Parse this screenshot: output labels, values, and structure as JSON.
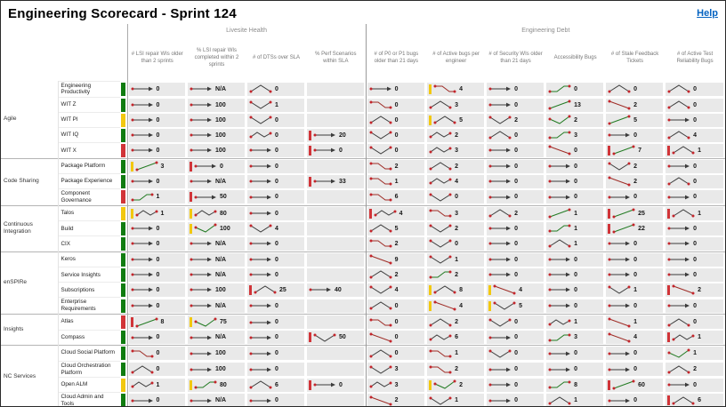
{
  "title": "Engineering Scorecard - Sprint 124",
  "help_label": "Help",
  "colors": {
    "green": "#107C10",
    "yellow": "#F2C80F",
    "red": "#D13438"
  },
  "column_groups": [
    {
      "label": "Livesite Health",
      "span": 4
    },
    {
      "label": "Engineering Debt",
      "span": 6
    }
  ],
  "columns": [
    "# LSI repair WIs older than 2 sprints",
    "% LSI repair WIs completed within 2 sprints",
    "# of DTSs over SLA",
    "% Perf Scenarios within SLA",
    "# of P0 or P1 bugs older than 21 days",
    "# of Active bugs per engineer",
    "# of Security WIs older than 21 days",
    "Accessibility Bugs",
    "# of Stale Feedback Tickets",
    "# of Active Test Reliability Bugs"
  ],
  "groups": [
    {
      "name": "Agile",
      "rows": [
        {
          "name": "Engineering Productivity",
          "status": "g",
          "cells": [
            [
              "0",
              "flat"
            ],
            [
              "N/A",
              "flat"
            ],
            [
              "0",
              "peak"
            ],
            [
              "",
              null
            ],
            [
              "0",
              "flat"
            ],
            [
              "4",
              "fall",
              "y"
            ],
            [
              "0",
              "flat"
            ],
            [
              "0",
              "rise"
            ],
            [
              "0",
              "peak"
            ],
            [
              "0",
              "peak"
            ]
          ]
        },
        {
          "name": "WIT Z",
          "status": "g",
          "cells": [
            [
              "0",
              "flat"
            ],
            [
              "100",
              "flat"
            ],
            [
              "1",
              "valley"
            ],
            [
              "",
              null
            ],
            [
              "0",
              "fall"
            ],
            [
              "3",
              "peak"
            ],
            [
              "0",
              "flat"
            ],
            [
              "13",
              "up"
            ],
            [
              "2",
              "down"
            ],
            [
              "0",
              "peak"
            ]
          ]
        },
        {
          "name": "WIT PI",
          "status": "y",
          "cells": [
            [
              "0",
              "flat"
            ],
            [
              "100",
              "flat"
            ],
            [
              "0",
              "valley"
            ],
            [
              "",
              null
            ],
            [
              "0",
              "peak"
            ],
            [
              "5",
              "peak",
              "y"
            ],
            [
              "2",
              "valley"
            ],
            [
              "2",
              "dip"
            ],
            [
              "5",
              "up"
            ],
            [
              "0",
              "flat"
            ]
          ]
        },
        {
          "name": "WIT IQ",
          "status": "g",
          "cells": [
            [
              "0",
              "flat"
            ],
            [
              "100",
              "flat"
            ],
            [
              "0",
              "wave"
            ],
            [
              "20",
              "flat",
              "r"
            ],
            [
              "0",
              "valley"
            ],
            [
              "2",
              "wave"
            ],
            [
              "0",
              "peak"
            ],
            [
              "3",
              "rise"
            ],
            [
              "0",
              "flat"
            ],
            [
              "4",
              "peak"
            ]
          ]
        },
        {
          "name": "WIT X",
          "status": "r",
          "cells": [
            [
              "0",
              "flat"
            ],
            [
              "100",
              "flat"
            ],
            [
              "0",
              "flat"
            ],
            [
              "0",
              "flat",
              "r"
            ],
            [
              "0",
              "valley"
            ],
            [
              "3",
              "wave"
            ],
            [
              "0",
              "flat"
            ],
            [
              "0",
              "down"
            ],
            [
              "7",
              "up",
              "r"
            ],
            [
              "1",
              "peak",
              "r"
            ]
          ]
        }
      ]
    },
    {
      "name": "Code Sharing",
      "rows": [
        {
          "name": "Package Platform",
          "status": "g",
          "cells": [
            [
              "3",
              "up",
              "y"
            ],
            [
              "0",
              "flat",
              "r"
            ],
            [
              "0",
              "flat"
            ],
            [
              "",
              null
            ],
            [
              "2",
              "fall"
            ],
            [
              "2",
              "peak"
            ],
            [
              "0",
              "flat"
            ],
            [
              "0",
              "flat"
            ],
            [
              "2",
              "valley"
            ],
            [
              "0",
              "flat"
            ]
          ]
        },
        {
          "name": "Package Experience",
          "status": "g",
          "cells": [
            [
              "0",
              "flat"
            ],
            [
              "N/A",
              "flat"
            ],
            [
              "0",
              "flat"
            ],
            [
              "33",
              "flat",
              "r"
            ],
            [
              "1",
              "fall"
            ],
            [
              "4",
              "wave"
            ],
            [
              "0",
              "flat"
            ],
            [
              "0",
              "flat"
            ],
            [
              "2",
              "down"
            ],
            [
              "0",
              "peak"
            ]
          ]
        },
        {
          "name": "Component Governance",
          "status": "r",
          "cells": [
            [
              "1",
              "rise"
            ],
            [
              "50",
              "flat",
              "r"
            ],
            [
              "0",
              "flat"
            ],
            [
              "",
              null
            ],
            [
              "6",
              "fall"
            ],
            [
              "0",
              "valley"
            ],
            [
              "0",
              "flat"
            ],
            [
              "0",
              "flat"
            ],
            [
              "0",
              "flat"
            ],
            [
              "0",
              "flat"
            ]
          ]
        }
      ]
    },
    {
      "name": "Continuous Integration",
      "rows": [
        {
          "name": "Talos",
          "status": "y",
          "cells": [
            [
              "1",
              "wave",
              "y"
            ],
            [
              "80",
              "wave",
              "y"
            ],
            [
              "0",
              "flat"
            ],
            [
              "",
              null
            ],
            [
              "4",
              "wave",
              "r"
            ],
            [
              "3",
              "fall"
            ],
            [
              "2",
              "peak"
            ],
            [
              "1",
              "up"
            ],
            [
              "25",
              "up",
              "r"
            ],
            [
              "1",
              "peak",
              "r"
            ]
          ]
        },
        {
          "name": "Build",
          "status": "g",
          "cells": [
            [
              "0",
              "flat"
            ],
            [
              "100",
              "dip",
              "y"
            ],
            [
              "4",
              "valley"
            ],
            [
              "",
              null
            ],
            [
              "5",
              "peak"
            ],
            [
              "2",
              "valley"
            ],
            [
              "0",
              "flat"
            ],
            [
              "1",
              "rise"
            ],
            [
              "22",
              "up",
              "r"
            ],
            [
              "0",
              "flat"
            ]
          ]
        },
        {
          "name": "CIX",
          "status": "g",
          "cells": [
            [
              "0",
              "flat"
            ],
            [
              "N/A",
              "flat"
            ],
            [
              "0",
              "flat"
            ],
            [
              "",
              null
            ],
            [
              "2",
              "fall"
            ],
            [
              "0",
              "valley"
            ],
            [
              "0",
              "flat"
            ],
            [
              "1",
              "peak"
            ],
            [
              "0",
              "flat"
            ],
            [
              "0",
              "flat"
            ]
          ]
        }
      ]
    },
    {
      "name": "enSPIRe",
      "rows": [
        {
          "name": "Keros",
          "status": "g",
          "cells": [
            [
              "0",
              "flat"
            ],
            [
              "N/A",
              "flat"
            ],
            [
              "0",
              "flat"
            ],
            [
              "",
              null
            ],
            [
              "9",
              "down"
            ],
            [
              "1",
              "valley"
            ],
            [
              "0",
              "flat"
            ],
            [
              "0",
              "flat"
            ],
            [
              "0",
              "flat"
            ],
            [
              "0",
              "flat"
            ]
          ]
        },
        {
          "name": "Service Insights",
          "status": "g",
          "cells": [
            [
              "0",
              "flat"
            ],
            [
              "N/A",
              "flat"
            ],
            [
              "0",
              "flat"
            ],
            [
              "",
              null
            ],
            [
              "2",
              "peak"
            ],
            [
              "2",
              "rise"
            ],
            [
              "0",
              "flat"
            ],
            [
              "0",
              "flat"
            ],
            [
              "0",
              "flat"
            ],
            [
              "0",
              "flat"
            ]
          ]
        },
        {
          "name": "Subscriptions",
          "status": "g",
          "cells": [
            [
              "0",
              "flat"
            ],
            [
              "100",
              "flat"
            ],
            [
              "25",
              "peak",
              "r"
            ],
            [
              "40",
              "flat"
            ],
            [
              "4",
              "valley"
            ],
            [
              "8",
              "peak",
              "y"
            ],
            [
              "4",
              "down",
              "y"
            ],
            [
              "0",
              "flat"
            ],
            [
              "1",
              "valley"
            ],
            [
              "2",
              "down",
              "r"
            ]
          ]
        },
        {
          "name": "Enterprise Requirements",
          "status": "g",
          "cells": [
            [
              "0",
              "flat"
            ],
            [
              "N/A",
              "flat"
            ],
            [
              "0",
              "flat"
            ],
            [
              "",
              null
            ],
            [
              "0",
              "peak"
            ],
            [
              "4",
              "down",
              "y"
            ],
            [
              "5",
              "valley",
              "y"
            ],
            [
              "0",
              "flat"
            ],
            [
              "0",
              "flat"
            ],
            [
              "0",
              "flat"
            ]
          ]
        }
      ]
    },
    {
      "name": "Insights",
      "rows": [
        {
          "name": "Atlas",
          "status": "r",
          "cells": [
            [
              "8",
              "up",
              "r"
            ],
            [
              "75",
              "dip",
              "y"
            ],
            [
              "0",
              "flat"
            ],
            [
              "",
              null
            ],
            [
              "0",
              "fall"
            ],
            [
              "2",
              "peak"
            ],
            [
              "0",
              "valley"
            ],
            [
              "1",
              "wave"
            ],
            [
              "1",
              "down"
            ],
            [
              "0",
              "peak"
            ]
          ]
        },
        {
          "name": "Compass",
          "status": "g",
          "cells": [
            [
              "0",
              "flat"
            ],
            [
              "N/A",
              "flat"
            ],
            [
              "0",
              "flat"
            ],
            [
              "50",
              "valley",
              "r"
            ],
            [
              "0",
              "down"
            ],
            [
              "6",
              "wave"
            ],
            [
              "0",
              "flat"
            ],
            [
              "3",
              "rise"
            ],
            [
              "4",
              "down"
            ],
            [
              "1",
              "wave",
              "r"
            ]
          ]
        }
      ]
    },
    {
      "name": "NC Services",
      "rows": [
        {
          "name": "Cloud Social Platform",
          "status": "g",
          "cells": [
            [
              "0",
              "fall"
            ],
            [
              "100",
              "flat"
            ],
            [
              "0",
              "flat"
            ],
            [
              "",
              null
            ],
            [
              "0",
              "peak"
            ],
            [
              "1",
              "fall"
            ],
            [
              "0",
              "valley"
            ],
            [
              "0",
              "flat"
            ],
            [
              "0",
              "flat"
            ],
            [
              "1",
              "dip"
            ]
          ]
        },
        {
          "name": "Cloud Orchestration Platform",
          "status": "g",
          "cells": [
            [
              "0",
              "peak"
            ],
            [
              "100",
              "flat"
            ],
            [
              "0",
              "flat"
            ],
            [
              "",
              null
            ],
            [
              "3",
              "valley"
            ],
            [
              "2",
              "fall"
            ],
            [
              "0",
              "flat"
            ],
            [
              "0",
              "flat"
            ],
            [
              "0",
              "flat"
            ],
            [
              "2",
              "peak"
            ]
          ]
        },
        {
          "name": "Open ALM",
          "status": "y",
          "cells": [
            [
              "1",
              "wave"
            ],
            [
              "80",
              "rise",
              "y"
            ],
            [
              "6",
              "peak"
            ],
            [
              "0",
              "flat",
              "r"
            ],
            [
              "3",
              "wave"
            ],
            [
              "2",
              "dip",
              "y"
            ],
            [
              "0",
              "flat"
            ],
            [
              "8",
              "rise"
            ],
            [
              "60",
              "up",
              "r"
            ],
            [
              "0",
              "flat"
            ]
          ]
        },
        {
          "name": "Cloud Admin and Tools",
          "status": "g",
          "cells": [
            [
              "0",
              "flat"
            ],
            [
              "N/A",
              "flat"
            ],
            [
              "0",
              "flat"
            ],
            [
              "",
              null
            ],
            [
              "2",
              "down"
            ],
            [
              "1",
              "valley"
            ],
            [
              "0",
              "flat"
            ],
            [
              "1",
              "peak"
            ],
            [
              "0",
              "flat"
            ],
            [
              "6",
              "peak",
              "r"
            ]
          ]
        }
      ]
    }
  ]
}
